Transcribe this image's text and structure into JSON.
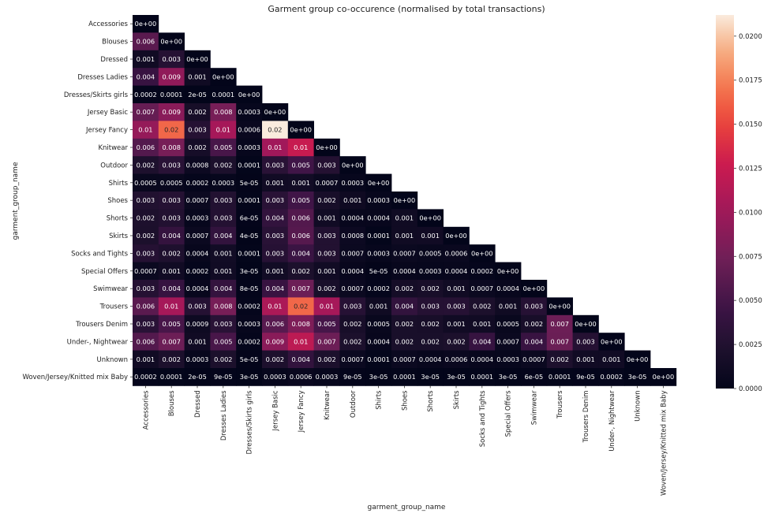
{
  "chart_data": {
    "type": "heatmap",
    "title": "Garment group co-occurence (normalised by total transactions)",
    "xlabel": "garment_group_name",
    "ylabel": "garment_group_name",
    "categories": [
      "Accessories",
      "Blouses",
      "Dressed",
      "Dresses Ladies",
      "Dresses/Skirts girls",
      "Jersey Basic",
      "Jersey Fancy",
      "Knitwear",
      "Outdoor",
      "Shirts",
      "Shoes",
      "Shorts",
      "Skirts",
      "Socks and Tights",
      "Special Offers",
      "Swimwear",
      "Trousers",
      "Trousers Denim",
      "Under-, Nightwear",
      "Unknown",
      "Woven/Jersey/Knitted mix Baby"
    ],
    "mask": "upper-triangle",
    "labels": [
      [
        "0e+00"
      ],
      [
        "0.006",
        "0e+00"
      ],
      [
        "0.001",
        "0.003",
        "0e+00"
      ],
      [
        "0.004",
        "0.009",
        "0.001",
        "0e+00"
      ],
      [
        "0.0002",
        "0.0001",
        "2e-05",
        "0.0001",
        "0e+00"
      ],
      [
        "0.007",
        "0.009",
        "0.002",
        "0.008",
        "0.0003",
        "0e+00"
      ],
      [
        "0.01",
        "0.02",
        "0.003",
        "0.01",
        "0.0006",
        "0.02",
        "0e+00"
      ],
      [
        "0.006",
        "0.008",
        "0.002",
        "0.005",
        "0.0003",
        "0.01",
        "0.01",
        "0e+00"
      ],
      [
        "0.002",
        "0.003",
        "0.0008",
        "0.002",
        "0.0001",
        "0.003",
        "0.005",
        "0.003",
        "0e+00"
      ],
      [
        "0.0005",
        "0.0005",
        "0.0002",
        "0.0003",
        "5e-05",
        "0.001",
        "0.001",
        "0.0007",
        "0.0003",
        "0e+00"
      ],
      [
        "0.003",
        "0.003",
        "0.0007",
        "0.003",
        "0.0001",
        "0.003",
        "0.005",
        "0.002",
        "0.001",
        "0.0003",
        "0e+00"
      ],
      [
        "0.002",
        "0.003",
        "0.0003",
        "0.003",
        "6e-05",
        "0.004",
        "0.006",
        "0.001",
        "0.0004",
        "0.0004",
        "0.001",
        "0e+00"
      ],
      [
        "0.002",
        "0.004",
        "0.0007",
        "0.004",
        "4e-05",
        "0.003",
        "0.006",
        "0.003",
        "0.0008",
        "0.0001",
        "0.001",
        "0.001",
        "0e+00"
      ],
      [
        "0.003",
        "0.002",
        "0.0004",
        "0.001",
        "0.0001",
        "0.003",
        "0.004",
        "0.003",
        "0.0007",
        "0.0003",
        "0.0007",
        "0.0005",
        "0.0006",
        "0e+00"
      ],
      [
        "0.0007",
        "0.001",
        "0.0002",
        "0.001",
        "3e-05",
        "0.001",
        "0.002",
        "0.001",
        "0.0004",
        "5e-05",
        "0.0004",
        "0.0003",
        "0.0004",
        "0.0002",
        "0e+00"
      ],
      [
        "0.003",
        "0.004",
        "0.0004",
        "0.004",
        "8e-05",
        "0.004",
        "0.007",
        "0.002",
        "0.0007",
        "0.0002",
        "0.002",
        "0.002",
        "0.001",
        "0.0007",
        "0.0004",
        "0e+00"
      ],
      [
        "0.006",
        "0.01",
        "0.003",
        "0.008",
        "0.0002",
        "0.01",
        "0.02",
        "0.01",
        "0.003",
        "0.001",
        "0.004",
        "0.003",
        "0.003",
        "0.002",
        "0.001",
        "0.003",
        "0e+00"
      ],
      [
        "0.003",
        "0.005",
        "0.0009",
        "0.003",
        "0.0003",
        "0.006",
        "0.008",
        "0.005",
        "0.002",
        "0.0005",
        "0.002",
        "0.002",
        "0.001",
        "0.001",
        "0.0005",
        "0.002",
        "0.007",
        "0e+00"
      ],
      [
        "0.006",
        "0.007",
        "0.001",
        "0.005",
        "0.0002",
        "0.009",
        "0.01",
        "0.007",
        "0.002",
        "0.0004",
        "0.002",
        "0.002",
        "0.002",
        "0.004",
        "0.0007",
        "0.004",
        "0.007",
        "0.003",
        "0e+00"
      ],
      [
        "0.001",
        "0.002",
        "0.0003",
        "0.002",
        "5e-05",
        "0.002",
        "0.004",
        "0.002",
        "0.0007",
        "0.0001",
        "0.0007",
        "0.0004",
        "0.0006",
        "0.0004",
        "0.0003",
        "0.0007",
        "0.002",
        "0.001",
        "0.001",
        "0e+00"
      ],
      [
        "0.0002",
        "0.0001",
        "2e-05",
        "9e-05",
        "3e-05",
        "0.0003",
        "0.0006",
        "0.0003",
        "9e-05",
        "3e-05",
        "0.0001",
        "3e-05",
        "3e-05",
        "0.0001",
        "3e-05",
        "6e-05",
        "0.0001",
        "9e-05",
        "0.0002",
        "3e-05",
        "0e+00"
      ]
    ],
    "values": [
      [
        0
      ],
      [
        0.0062,
        0
      ],
      [
        0.0012,
        0.0028,
        0
      ],
      [
        0.0042,
        0.0092,
        0.0011,
        0
      ],
      [
        0.0002,
        0.0001,
        2e-05,
        0.0001,
        0
      ],
      [
        0.0068,
        0.0088,
        0.0017,
        0.0078,
        0.0003,
        0
      ],
      [
        0.0095,
        0.0165,
        0.0028,
        0.0105,
        0.0006,
        0.0212,
        0
      ],
      [
        0.0058,
        0.0078,
        0.0016,
        0.0052,
        0.0003,
        0.0102,
        0.0125,
        0
      ],
      [
        0.0022,
        0.0031,
        0.0008,
        0.0021,
        0.0001,
        0.0031,
        0.0048,
        0.0027,
        0
      ],
      [
        0.0005,
        0.0005,
        0.0002,
        0.0003,
        5e-05,
        0.0012,
        0.0013,
        0.0007,
        0.0003,
        0
      ],
      [
        0.0025,
        0.0028,
        0.0007,
        0.0026,
        0.0001,
        0.0031,
        0.0048,
        0.0018,
        0.001,
        0.0003,
        0
      ],
      [
        0.0022,
        0.0026,
        0.0003,
        0.0027,
        6e-05,
        0.0038,
        0.0058,
        0.0012,
        0.0004,
        0.0004,
        0.0011,
        0
      ],
      [
        0.0021,
        0.0039,
        0.0007,
        0.0038,
        4e-05,
        0.0031,
        0.006,
        0.0026,
        0.0008,
        0.0001,
        0.0011,
        0.0012,
        0
      ],
      [
        0.0028,
        0.0023,
        0.0004,
        0.0013,
        0.0001,
        0.0029,
        0.0044,
        0.0026,
        0.0007,
        0.0003,
        0.0007,
        0.0005,
        0.0006,
        0
      ],
      [
        0.0007,
        0.0012,
        0.0002,
        0.0012,
        3e-05,
        0.0013,
        0.0021,
        0.0012,
        0.0004,
        5e-05,
        0.0004,
        0.0003,
        0.0004,
        0.0002,
        0
      ],
      [
        0.0028,
        0.0041,
        0.0004,
        0.0039,
        8e-05,
        0.0042,
        0.0072,
        0.0019,
        0.0007,
        0.0002,
        0.0015,
        0.0018,
        0.0012,
        0.0007,
        0.0004,
        0
      ],
      [
        0.0062,
        0.0105,
        0.0028,
        0.0078,
        0.0002,
        0.0108,
        0.0165,
        0.0105,
        0.0029,
        0.0011,
        0.0038,
        0.0028,
        0.0029,
        0.0021,
        0.0011,
        0.0029,
        0
      ],
      [
        0.0031,
        0.0052,
        0.0009,
        0.0031,
        0.0003,
        0.0061,
        0.0082,
        0.0051,
        0.0018,
        0.0005,
        0.0019,
        0.0018,
        0.0012,
        0.0012,
        0.0005,
        0.0018,
        0.0072,
        0
      ],
      [
        0.0058,
        0.0072,
        0.0012,
        0.0052,
        0.0002,
        0.0088,
        0.0118,
        0.0072,
        0.0021,
        0.0004,
        0.0019,
        0.0019,
        0.0021,
        0.0041,
        0.0007,
        0.0042,
        0.0071,
        0.0028,
        0
      ],
      [
        0.0012,
        0.0021,
        0.0003,
        0.0021,
        5e-05,
        0.0022,
        0.0038,
        0.0021,
        0.0007,
        0.0001,
        0.0007,
        0.0004,
        0.0006,
        0.0004,
        0.0003,
        0.0007,
        0.0022,
        0.0012,
        0.0012,
        0
      ],
      [
        0.0002,
        0.0001,
        2e-05,
        9e-05,
        3e-05,
        0.0003,
        0.0006,
        0.0003,
        9e-05,
        3e-05,
        0.0001,
        3e-05,
        3e-05,
        0.0001,
        3e-05,
        6e-05,
        0.0001,
        9e-05,
        0.0002,
        3e-05,
        0
      ]
    ],
    "colorbar": {
      "min": 0.0,
      "max": 0.0212,
      "ticks": [
        0.0,
        0.0025,
        0.005,
        0.0075,
        0.01,
        0.0125,
        0.015,
        0.0175,
        0.02
      ],
      "tick_labels": [
        "0.0000",
        "0.0025",
        "0.0050",
        "0.0075",
        "0.0100",
        "0.0125",
        "0.0150",
        "0.0175",
        "0.0200"
      ]
    },
    "colormap": "rocket"
  }
}
